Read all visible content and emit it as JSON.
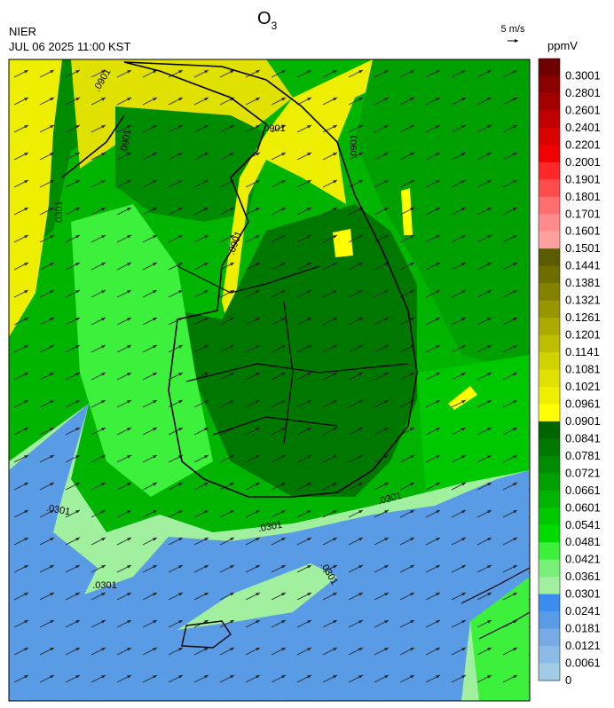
{
  "header": {
    "agency": "NIER",
    "datetime": "JUL 06 2025 11:00 KST",
    "title": {
      "main": "O",
      "subscript": "3"
    },
    "wind_scale": "5 m/s"
  },
  "colorbar": {
    "unit": "ppmV",
    "levels": [
      {
        "label": "0.3001",
        "color": "#6e0000"
      },
      {
        "label": "0.2801",
        "color": "#8b0000"
      },
      {
        "label": "0.2601",
        "color": "#a50000"
      },
      {
        "label": "0.2401",
        "color": "#c00000"
      },
      {
        "label": "0.2201",
        "color": "#d90000"
      },
      {
        "label": "0.2001",
        "color": "#f00000"
      },
      {
        "label": "0.1901",
        "color": "#ff2828"
      },
      {
        "label": "0.1801",
        "color": "#ff4c4c"
      },
      {
        "label": "0.1701",
        "color": "#ff6e6e"
      },
      {
        "label": "0.1601",
        "color": "#ff8c8c"
      },
      {
        "label": "0.1501",
        "color": "#ffa0a0"
      },
      {
        "label": "0.1441",
        "color": "#5a5a00"
      },
      {
        "label": "0.1381",
        "color": "#6e6e00"
      },
      {
        "label": "0.1321",
        "color": "#828200"
      },
      {
        "label": "0.1261",
        "color": "#969600"
      },
      {
        "label": "0.1201",
        "color": "#aaaa00"
      },
      {
        "label": "0.1141",
        "color": "#bebe00"
      },
      {
        "label": "0.1081",
        "color": "#d2d200"
      },
      {
        "label": "0.1021",
        "color": "#e1e100"
      },
      {
        "label": "0.0961",
        "color": "#eeee00"
      },
      {
        "label": "0.0901",
        "color": "#ffff00"
      },
      {
        "label": "0.0841",
        "color": "#006400"
      },
      {
        "label": "0.0781",
        "color": "#007800"
      },
      {
        "label": "0.0721",
        "color": "#008c00"
      },
      {
        "label": "0.0661",
        "color": "#00a000"
      },
      {
        "label": "0.0601",
        "color": "#00b400"
      },
      {
        "label": "0.0541",
        "color": "#00c800"
      },
      {
        "label": "0.0481",
        "color": "#00dc00"
      },
      {
        "label": "0.0421",
        "color": "#3cf03c"
      },
      {
        "label": "0.0361",
        "color": "#78f078"
      },
      {
        "label": "0.0301",
        "color": "#a0f0a0"
      },
      {
        "label": "0.0241",
        "color": "#3c8cf0"
      },
      {
        "label": "0.0181",
        "color": "#5a9be6"
      },
      {
        "label": "0.0121",
        "color": "#78aae6"
      },
      {
        "label": "0.0061",
        "color": "#8cbbe6"
      },
      {
        "label": "0",
        "color": "#a0cce6"
      }
    ]
  },
  "contour_labels": [
    ".0901",
    ".0901",
    ".0901",
    ".0901",
    ".0901",
    ".0301",
    ".0301",
    ".0301",
    ".0301",
    ".0301",
    ".0301"
  ]
}
